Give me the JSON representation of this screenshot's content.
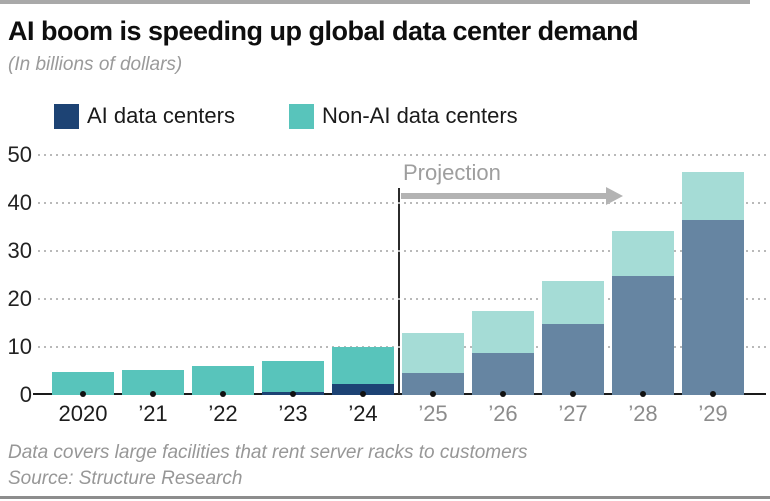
{
  "header": {
    "title": "AI boom is speeding up global data center demand",
    "subtitle": "(In billions of dollars)"
  },
  "legend": {
    "items": [
      {
        "label": "AI data centers",
        "color": "#1d4374"
      },
      {
        "label": "Non-AI data centers",
        "color": "#58c4bb"
      }
    ]
  },
  "projection": {
    "label": "Projection"
  },
  "footer": {
    "note": "Data covers large facilities that rent server racks to customers",
    "source": "Source: Structure Research"
  },
  "chart_data": {
    "type": "bar",
    "stacked": true,
    "title": "AI boom is speeding up global data center demand",
    "units": "billions of dollars",
    "categories": [
      "2020",
      "’21",
      "’22",
      "’23",
      "’24",
      "’25",
      "’26",
      "’27",
      "’28",
      "’29"
    ],
    "projection_from_index": 5,
    "series": [
      {
        "name": "AI data centers",
        "values": [
          0,
          0,
          0,
          0.7,
          2.2,
          4.6,
          8.8,
          14.7,
          24.8,
          36.5
        ],
        "color_historical": "#1d4374",
        "color_projection": "#6685a2"
      },
      {
        "name": "Non-AI data centers",
        "values": [
          4.8,
          5.3,
          6.1,
          6.3,
          7.8,
          8.4,
          8.6,
          9.1,
          9.4,
          10.0
        ],
        "color_historical": "#58c4bb",
        "color_projection": "#a5dcd6"
      }
    ],
    "ylim": [
      0,
      50
    ],
    "yticks": [
      0,
      10,
      20,
      30,
      40,
      50
    ],
    "grid": "horizontal-dotted",
    "legend_position": "top-left",
    "annotation": "Projection",
    "label_color_historical": "#1c1c1c",
    "label_color_projection": "#8c8c8c"
  }
}
